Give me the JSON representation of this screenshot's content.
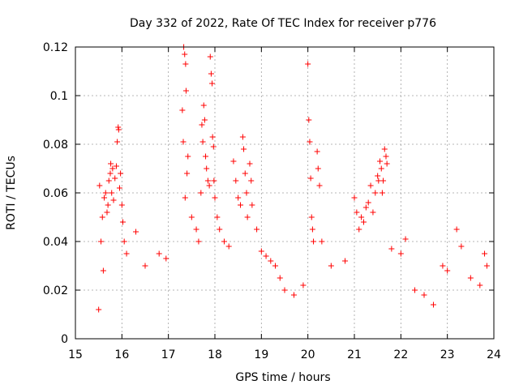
{
  "chart_data": {
    "type": "scatter",
    "title": "Day 332 of 2022, Rate Of TEC Index for receiver p776",
    "xlabel": "GPS time / hours",
    "ylabel": "ROTI / TECUs",
    "xlim": [
      15,
      24
    ],
    "ylim": [
      0,
      0.12
    ],
    "x_ticks": [
      "15",
      "16",
      "17",
      "18",
      "19",
      "20",
      "21",
      "22",
      "23",
      "24"
    ],
    "y_ticks": [
      "0",
      "0.02",
      "0.04",
      "0.06",
      "0.08",
      "0.1",
      "0.12"
    ],
    "grid": true,
    "marker": "+",
    "color": "#ff0000",
    "series": [
      {
        "points": [
          [
            15.5,
            0.012
          ],
          [
            15.52,
            0.063
          ],
          [
            15.55,
            0.04
          ],
          [
            15.58,
            0.05
          ],
          [
            15.6,
            0.028
          ],
          [
            15.62,
            0.058
          ],
          [
            15.65,
            0.06
          ],
          [
            15.68,
            0.052
          ],
          [
            15.7,
            0.055
          ],
          [
            15.72,
            0.065
          ],
          [
            15.75,
            0.068
          ],
          [
            15.76,
            0.072
          ],
          [
            15.78,
            0.06
          ],
          [
            15.8,
            0.07
          ],
          [
            15.82,
            0.057
          ],
          [
            15.85,
            0.066
          ],
          [
            15.88,
            0.071
          ],
          [
            15.9,
            0.081
          ],
          [
            15.92,
            0.087
          ],
          [
            15.93,
            0.086
          ],
          [
            15.95,
            0.062
          ],
          [
            15.97,
            0.068
          ],
          [
            16.0,
            0.055
          ],
          [
            16.02,
            0.048
          ],
          [
            16.05,
            0.04
          ],
          [
            16.1,
            0.035
          ],
          [
            16.3,
            0.044
          ],
          [
            16.5,
            0.03
          ],
          [
            16.8,
            0.035
          ],
          [
            16.95,
            0.033
          ],
          [
            17.3,
            0.094
          ],
          [
            17.32,
            0.081
          ],
          [
            17.33,
            0.12
          ],
          [
            17.35,
            0.117
          ],
          [
            17.37,
            0.113
          ],
          [
            17.38,
            0.102
          ],
          [
            17.4,
            0.068
          ],
          [
            17.42,
            0.075
          ],
          [
            17.36,
            0.058
          ],
          [
            17.5,
            0.05
          ],
          [
            17.6,
            0.045
          ],
          [
            17.65,
            0.04
          ],
          [
            17.7,
            0.06
          ],
          [
            17.72,
            0.088
          ],
          [
            17.74,
            0.081
          ],
          [
            17.76,
            0.096
          ],
          [
            17.78,
            0.09
          ],
          [
            17.8,
            0.075
          ],
          [
            17.82,
            0.07
          ],
          [
            17.85,
            0.065
          ],
          [
            17.88,
            0.063
          ],
          [
            17.9,
            0.116
          ],
          [
            17.92,
            0.109
          ],
          [
            17.94,
            0.105
          ],
          [
            17.95,
            0.083
          ],
          [
            17.97,
            0.079
          ],
          [
            17.98,
            0.065
          ],
          [
            18.0,
            0.058
          ],
          [
            18.05,
            0.05
          ],
          [
            18.1,
            0.045
          ],
          [
            18.2,
            0.04
          ],
          [
            18.3,
            0.038
          ],
          [
            18.4,
            0.073
          ],
          [
            18.45,
            0.065
          ],
          [
            18.5,
            0.058
          ],
          [
            18.55,
            0.055
          ],
          [
            18.6,
            0.083
          ],
          [
            18.62,
            0.078
          ],
          [
            18.65,
            0.068
          ],
          [
            18.68,
            0.06
          ],
          [
            18.7,
            0.05
          ],
          [
            18.75,
            0.072
          ],
          [
            18.78,
            0.065
          ],
          [
            18.8,
            0.055
          ],
          [
            18.9,
            0.045
          ],
          [
            19.0,
            0.036
          ],
          [
            19.1,
            0.034
          ],
          [
            19.2,
            0.032
          ],
          [
            19.3,
            0.03
          ],
          [
            19.4,
            0.025
          ],
          [
            19.5,
            0.02
          ],
          [
            19.7,
            0.018
          ],
          [
            19.9,
            0.022
          ],
          [
            20.0,
            0.113
          ],
          [
            20.02,
            0.09
          ],
          [
            20.04,
            0.081
          ],
          [
            20.06,
            0.066
          ],
          [
            20.08,
            0.05
          ],
          [
            20.1,
            0.045
          ],
          [
            20.12,
            0.04
          ],
          [
            20.2,
            0.077
          ],
          [
            20.22,
            0.07
          ],
          [
            20.25,
            0.063
          ],
          [
            20.3,
            0.04
          ],
          [
            20.5,
            0.03
          ],
          [
            20.8,
            0.032
          ],
          [
            21.0,
            0.058
          ],
          [
            21.05,
            0.052
          ],
          [
            21.1,
            0.045
          ],
          [
            21.15,
            0.05
          ],
          [
            21.2,
            0.048
          ],
          [
            21.25,
            0.054
          ],
          [
            21.3,
            0.056
          ],
          [
            21.35,
            0.063
          ],
          [
            21.4,
            0.052
          ],
          [
            21.45,
            0.06
          ],
          [
            21.5,
            0.067
          ],
          [
            21.52,
            0.065
          ],
          [
            21.55,
            0.073
          ],
          [
            21.58,
            0.07
          ],
          [
            21.6,
            0.06
          ],
          [
            21.62,
            0.065
          ],
          [
            21.65,
            0.078
          ],
          [
            21.68,
            0.075
          ],
          [
            21.7,
            0.072
          ],
          [
            21.8,
            0.037
          ],
          [
            22.0,
            0.035
          ],
          [
            22.1,
            0.041
          ],
          [
            22.3,
            0.02
          ],
          [
            22.5,
            0.018
          ],
          [
            22.7,
            0.014
          ],
          [
            22.9,
            0.03
          ],
          [
            23.0,
            0.028
          ],
          [
            23.2,
            0.045
          ],
          [
            23.3,
            0.038
          ],
          [
            23.5,
            0.025
          ],
          [
            23.7,
            0.022
          ],
          [
            23.8,
            0.035
          ],
          [
            23.85,
            0.03
          ]
        ]
      }
    ]
  }
}
